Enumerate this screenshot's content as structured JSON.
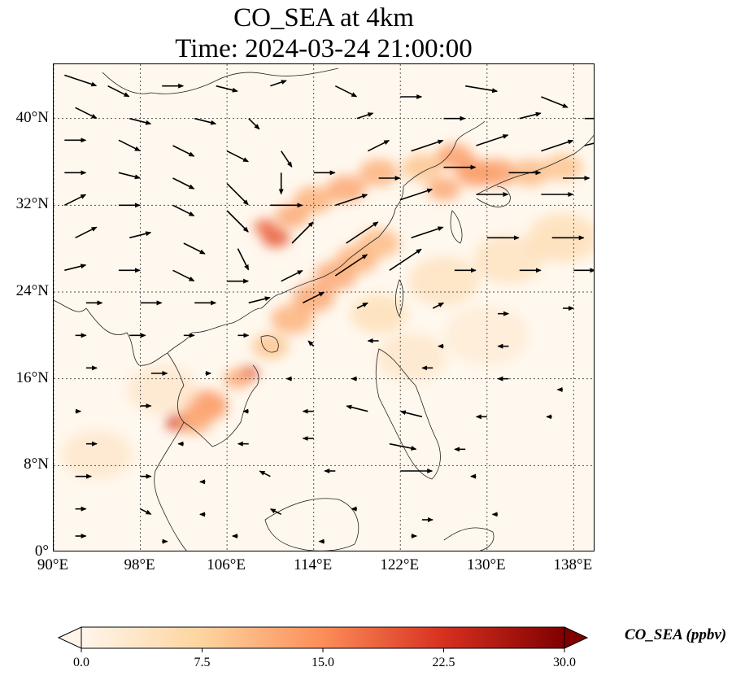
{
  "title_line1": "CO_SEA at 4km",
  "title_line2": "Time: 2024-03-24 21:00:00",
  "map": {
    "lon_range": [
      90,
      140
    ],
    "lat_range": [
      0,
      45
    ],
    "lon_ticks": [
      {
        "value": 90,
        "label": "90°E"
      },
      {
        "value": 98,
        "label": "98°E"
      },
      {
        "value": 106,
        "label": "106°E"
      },
      {
        "value": 114,
        "label": "114°E"
      },
      {
        "value": 122,
        "label": "122°E"
      },
      {
        "value": 130,
        "label": "130°E"
      },
      {
        "value": 138,
        "label": "138°E"
      }
    ],
    "lat_ticks": [
      {
        "value": 0,
        "label": "0°"
      },
      {
        "value": 8,
        "label": "8°N"
      },
      {
        "value": 16,
        "label": "16°N"
      },
      {
        "value": 24,
        "label": "24°N"
      },
      {
        "value": 32,
        "label": "32°N"
      },
      {
        "value": 40,
        "label": "40°N"
      }
    ],
    "gridlines": true,
    "plume_cells": [
      {
        "lon": 104,
        "lat": 13.5,
        "r": 1.6,
        "v": 14
      },
      {
        "lon": 101.5,
        "lat": 12,
        "r": 0.9,
        "v": 22
      },
      {
        "lon": 103,
        "lat": 12,
        "r": 1.2,
        "v": 12
      },
      {
        "lon": 108,
        "lat": 16.5,
        "r": 0.7,
        "v": 22
      },
      {
        "lon": 107,
        "lat": 16,
        "r": 1.0,
        "v": 12
      },
      {
        "lon": 110,
        "lat": 19,
        "r": 1.3,
        "v": 9
      },
      {
        "lon": 112,
        "lat": 21.5,
        "r": 1.5,
        "v": 11
      },
      {
        "lon": 114,
        "lat": 23.5,
        "r": 1.5,
        "v": 12
      },
      {
        "lon": 116,
        "lat": 25.5,
        "r": 1.5,
        "v": 12
      },
      {
        "lon": 118,
        "lat": 27,
        "r": 1.5,
        "v": 11
      },
      {
        "lon": 120,
        "lat": 28.5,
        "r": 1.5,
        "v": 10
      },
      {
        "lon": 110.5,
        "lat": 29,
        "r": 1.0,
        "v": 19
      },
      {
        "lon": 109.5,
        "lat": 30,
        "r": 0.8,
        "v": 18
      },
      {
        "lon": 112,
        "lat": 31,
        "r": 1.2,
        "v": 12
      },
      {
        "lon": 114,
        "lat": 32.5,
        "r": 1.4,
        "v": 11
      },
      {
        "lon": 117,
        "lat": 33.5,
        "r": 1.4,
        "v": 12
      },
      {
        "lon": 120,
        "lat": 35,
        "r": 1.4,
        "v": 11
      },
      {
        "lon": 124,
        "lat": 35.5,
        "r": 1.4,
        "v": 9
      },
      {
        "lon": 127,
        "lat": 36.5,
        "r": 1.3,
        "v": 13
      },
      {
        "lon": 129,
        "lat": 35,
        "r": 1.4,
        "v": 14
      },
      {
        "lon": 131,
        "lat": 35,
        "r": 1.4,
        "v": 13
      },
      {
        "lon": 134,
        "lat": 35,
        "r": 1.4,
        "v": 10
      },
      {
        "lon": 137,
        "lat": 35.5,
        "r": 1.4,
        "v": 9
      },
      {
        "lon": 126,
        "lat": 33.5,
        "r": 1.2,
        "v": 12
      },
      {
        "lon": 120,
        "lat": 22,
        "r": 2.0,
        "v": 5
      },
      {
        "lon": 126,
        "lat": 25,
        "r": 2.5,
        "v": 4
      },
      {
        "lon": 132,
        "lat": 27,
        "r": 2.5,
        "v": 4
      },
      {
        "lon": 137,
        "lat": 29,
        "r": 2.5,
        "v": 5
      },
      {
        "lon": 94,
        "lat": 9,
        "r": 2.5,
        "v": 3
      },
      {
        "lon": 100,
        "lat": 15,
        "r": 2.5,
        "v": 3
      },
      {
        "lon": 123,
        "lat": 18,
        "r": 2.5,
        "v": 3
      },
      {
        "lon": 130,
        "lat": 20,
        "r": 3.0,
        "v": 2
      }
    ],
    "wind_vectors": [
      {
        "lon": 91,
        "lat": 44,
        "u": 3,
        "v": -1
      },
      {
        "lon": 95,
        "lat": 43,
        "u": 2,
        "v": -1
      },
      {
        "lon": 100,
        "lat": 43,
        "u": 2,
        "v": 0
      },
      {
        "lon": 105,
        "lat": 43,
        "u": 2,
        "v": -0.5
      },
      {
        "lon": 110,
        "lat": 43,
        "u": 1.5,
        "v": 0.5
      },
      {
        "lon": 116,
        "lat": 43,
        "u": 2,
        "v": -1
      },
      {
        "lon": 122,
        "lat": 42,
        "u": 2,
        "v": 0
      },
      {
        "lon": 128,
        "lat": 43,
        "u": 3,
        "v": -0.5
      },
      {
        "lon": 135,
        "lat": 42,
        "u": 2.5,
        "v": -1
      },
      {
        "lon": 92,
        "lat": 41,
        "u": 2,
        "v": -1
      },
      {
        "lon": 97,
        "lat": 40,
        "u": 2,
        "v": -0.5
      },
      {
        "lon": 103,
        "lat": 40,
        "u": 2,
        "v": -0.5
      },
      {
        "lon": 108,
        "lat": 40,
        "u": 1,
        "v": -1
      },
      {
        "lon": 118,
        "lat": 40,
        "u": 1.5,
        "v": 0.5
      },
      {
        "lon": 126,
        "lat": 40,
        "u": 2,
        "v": 0
      },
      {
        "lon": 133,
        "lat": 40,
        "u": 2,
        "v": 0.5
      },
      {
        "lon": 139,
        "lat": 40,
        "u": 2,
        "v": 0
      },
      {
        "lon": 91,
        "lat": 38,
        "u": 2,
        "v": 0
      },
      {
        "lon": 96,
        "lat": 38,
        "u": 2,
        "v": -1
      },
      {
        "lon": 101,
        "lat": 37.5,
        "u": 2,
        "v": -1
      },
      {
        "lon": 106,
        "lat": 37,
        "u": 2,
        "v": -1
      },
      {
        "lon": 111,
        "lat": 37,
        "u": 1,
        "v": -1.5
      },
      {
        "lon": 119,
        "lat": 37,
        "u": 2,
        "v": 1
      },
      {
        "lon": 123,
        "lat": 37,
        "u": 3,
        "v": 1
      },
      {
        "lon": 129,
        "lat": 37.5,
        "u": 3,
        "v": 1
      },
      {
        "lon": 135,
        "lat": 37,
        "u": 3,
        "v": 1
      },
      {
        "lon": 139,
        "lat": 37.5,
        "u": 2,
        "v": 0.5
      },
      {
        "lon": 91,
        "lat": 35,
        "u": 2,
        "v": 0
      },
      {
        "lon": 96,
        "lat": 35,
        "u": 2,
        "v": -0.5
      },
      {
        "lon": 101,
        "lat": 34.5,
        "u": 2,
        "v": -1
      },
      {
        "lon": 106,
        "lat": 34,
        "u": 2,
        "v": -2
      },
      {
        "lon": 111,
        "lat": 35,
        "u": 0,
        "v": -2
      },
      {
        "lon": 114,
        "lat": 35,
        "u": 2,
        "v": 0
      },
      {
        "lon": 120,
        "lat": 34.5,
        "u": 2,
        "v": 0
      },
      {
        "lon": 126,
        "lat": 35.5,
        "u": 3,
        "v": 0
      },
      {
        "lon": 132,
        "lat": 35,
        "u": 3,
        "v": 0
      },
      {
        "lon": 137,
        "lat": 34.5,
        "u": 2.5,
        "v": 0
      },
      {
        "lon": 91,
        "lat": 32,
        "u": 2,
        "v": 1
      },
      {
        "lon": 96,
        "lat": 32,
        "u": 2,
        "v": 0
      },
      {
        "lon": 101,
        "lat": 32,
        "u": 2,
        "v": -1
      },
      {
        "lon": 106,
        "lat": 31.5,
        "u": 2,
        "v": -2
      },
      {
        "lon": 110,
        "lat": 32,
        "u": 3,
        "v": 0
      },
      {
        "lon": 116,
        "lat": 32,
        "u": 3,
        "v": 1
      },
      {
        "lon": 122,
        "lat": 32.5,
        "u": 3,
        "v": 1
      },
      {
        "lon": 129,
        "lat": 33,
        "u": 3,
        "v": 0
      },
      {
        "lon": 135,
        "lat": 33,
        "u": 3,
        "v": 0
      },
      {
        "lon": 92,
        "lat": 29,
        "u": 2,
        "v": 1
      },
      {
        "lon": 97,
        "lat": 29,
        "u": 2,
        "v": 0.5
      },
      {
        "lon": 102,
        "lat": 28.5,
        "u": 2,
        "v": -1
      },
      {
        "lon": 107,
        "lat": 28,
        "u": 1,
        "v": -2
      },
      {
        "lon": 112,
        "lat": 28.5,
        "u": 2,
        "v": 2
      },
      {
        "lon": 117,
        "lat": 28.5,
        "u": 3,
        "v": 2
      },
      {
        "lon": 123,
        "lat": 29,
        "u": 3,
        "v": 1
      },
      {
        "lon": 130,
        "lat": 29,
        "u": 3,
        "v": 0
      },
      {
        "lon": 136,
        "lat": 29,
        "u": 3,
        "v": 0
      },
      {
        "lon": 91,
        "lat": 26,
        "u": 2,
        "v": 0.5
      },
      {
        "lon": 96,
        "lat": 26,
        "u": 2,
        "v": 0
      },
      {
        "lon": 101,
        "lat": 26,
        "u": 2,
        "v": -1
      },
      {
        "lon": 106,
        "lat": 25,
        "u": 2,
        "v": 0
      },
      {
        "lon": 111,
        "lat": 25,
        "u": 2,
        "v": 1
      },
      {
        "lon": 116,
        "lat": 25.5,
        "u": 3,
        "v": 2
      },
      {
        "lon": 121,
        "lat": 26,
        "u": 3,
        "v": 2
      },
      {
        "lon": 127,
        "lat": 26,
        "u": 2,
        "v": 0
      },
      {
        "lon": 133,
        "lat": 26,
        "u": 2,
        "v": 0
      },
      {
        "lon": 138,
        "lat": 26,
        "u": 2,
        "v": 0
      },
      {
        "lon": 93,
        "lat": 23,
        "u": 1.5,
        "v": 0
      },
      {
        "lon": 98,
        "lat": 23,
        "u": 2,
        "v": 0
      },
      {
        "lon": 103,
        "lat": 23,
        "u": 2,
        "v": 0
      },
      {
        "lon": 108,
        "lat": 23,
        "u": 2,
        "v": 0.5
      },
      {
        "lon": 113,
        "lat": 23,
        "u": 2,
        "v": 1
      },
      {
        "lon": 118,
        "lat": 22.5,
        "u": 1,
        "v": 0.5
      },
      {
        "lon": 125,
        "lat": 22.5,
        "u": 1,
        "v": 0.5
      },
      {
        "lon": 131,
        "lat": 22,
        "u": 1,
        "v": 0
      },
      {
        "lon": 137,
        "lat": 22.5,
        "u": 1,
        "v": 0
      },
      {
        "lon": 92,
        "lat": 20,
        "u": 1,
        "v": 0
      },
      {
        "lon": 97,
        "lat": 20,
        "u": 1.5,
        "v": 0
      },
      {
        "lon": 102,
        "lat": 20,
        "u": 1,
        "v": 0
      },
      {
        "lon": 107,
        "lat": 20,
        "u": 1,
        "v": 0
      },
      {
        "lon": 114,
        "lat": 19,
        "u": -0.5,
        "v": 0.5
      },
      {
        "lon": 120,
        "lat": 19.5,
        "u": -1,
        "v": 0
      },
      {
        "lon": 126,
        "lat": 19,
        "u": -0.5,
        "v": 0
      },
      {
        "lon": 132,
        "lat": 19,
        "u": -1,
        "v": 0
      },
      {
        "lon": 93,
        "lat": 17,
        "u": 1,
        "v": 0
      },
      {
        "lon": 99,
        "lat": 16.5,
        "u": 1.5,
        "v": 0
      },
      {
        "lon": 104,
        "lat": 16.5,
        "u": 0.5,
        "v": 0
      },
      {
        "lon": 112,
        "lat": 16,
        "u": -0.5,
        "v": 0
      },
      {
        "lon": 118,
        "lat": 16,
        "u": -0.5,
        "v": 0
      },
      {
        "lon": 125,
        "lat": 17,
        "u": -1,
        "v": 0
      },
      {
        "lon": 132,
        "lat": 16,
        "u": -1,
        "v": 0
      },
      {
        "lon": 137,
        "lat": 15,
        "u": -0.5,
        "v": 0
      },
      {
        "lon": 92,
        "lat": 13,
        "u": 0.5,
        "v": 0
      },
      {
        "lon": 98,
        "lat": 13.5,
        "u": 1,
        "v": 0
      },
      {
        "lon": 108,
        "lat": 13,
        "u": -0.5,
        "v": 0
      },
      {
        "lon": 114,
        "lat": 13,
        "u": -1,
        "v": 0
      },
      {
        "lon": 119,
        "lat": 13,
        "u": -2,
        "v": 0.5
      },
      {
        "lon": 124,
        "lat": 12.5,
        "u": -2,
        "v": 0.5
      },
      {
        "lon": 130,
        "lat": 12.5,
        "u": -1,
        "v": 0
      },
      {
        "lon": 136,
        "lat": 12.5,
        "u": -0.5,
        "v": 0
      },
      {
        "lon": 93,
        "lat": 10,
        "u": 1,
        "v": 0
      },
      {
        "lon": 102,
        "lat": 10,
        "u": -0.5,
        "v": 0
      },
      {
        "lon": 108,
        "lat": 10,
        "u": -1,
        "v": 0
      },
      {
        "lon": 114,
        "lat": 10.5,
        "u": -1,
        "v": 0
      },
      {
        "lon": 121,
        "lat": 10,
        "u": 2.5,
        "v": -0.5
      },
      {
        "lon": 128,
        "lat": 9.5,
        "u": -1,
        "v": 0
      },
      {
        "lon": 92,
        "lat": 7,
        "u": 1.5,
        "v": 0
      },
      {
        "lon": 98,
        "lat": 7,
        "u": 1,
        "v": 0
      },
      {
        "lon": 104,
        "lat": 6.5,
        "u": -0.5,
        "v": 0
      },
      {
        "lon": 110,
        "lat": 7,
        "u": -1,
        "v": 0.5
      },
      {
        "lon": 116,
        "lat": 7.5,
        "u": -1,
        "v": 0
      },
      {
        "lon": 122,
        "lat": 7.5,
        "u": 3,
        "v": 0
      },
      {
        "lon": 129,
        "lat": 7,
        "u": -0.5,
        "v": 0
      },
      {
        "lon": 92,
        "lat": 4,
        "u": 1,
        "v": 0
      },
      {
        "lon": 98,
        "lat": 4,
        "u": 1,
        "v": -0.5
      },
      {
        "lon": 104,
        "lat": 3.5,
        "u": -0.5,
        "v": 0
      },
      {
        "lon": 111,
        "lat": 3.5,
        "u": -1,
        "v": 0.5
      },
      {
        "lon": 118,
        "lat": 4,
        "u": -0.5,
        "v": 0
      },
      {
        "lon": 124,
        "lat": 3,
        "u": 1,
        "v": 0
      },
      {
        "lon": 131,
        "lat": 3.5,
        "u": -0.5,
        "v": 0
      },
      {
        "lon": 92,
        "lat": 1.5,
        "u": 1,
        "v": 0
      },
      {
        "lon": 100,
        "lat": 1,
        "u": 0.5,
        "v": 0
      },
      {
        "lon": 107,
        "lat": 1.5,
        "u": -0.5,
        "v": 0
      },
      {
        "lon": 115,
        "lat": 1,
        "u": -0.5,
        "v": 0
      },
      {
        "lon": 123,
        "lat": 1.5,
        "u": 0.5,
        "v": 0
      }
    ]
  },
  "colorbar": {
    "label": "CO_SEA (ppbv)",
    "min": 0,
    "max": 30,
    "ticks": [
      "0.0",
      "7.5",
      "15.0",
      "22.5",
      "30.0"
    ],
    "colors": [
      "#fff5eb",
      "#fdd49e",
      "#fc8d59",
      "#d7301f",
      "#7f0000"
    ]
  }
}
